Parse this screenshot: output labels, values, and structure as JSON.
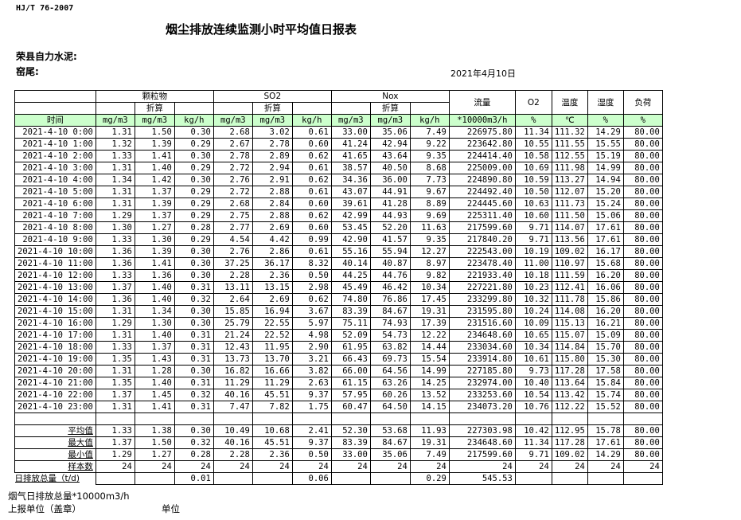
{
  "standard": "HJ/T  76-2007",
  "title": "烟尘排放连续监测小时平均值日报表",
  "company": "荣县自力水泥:",
  "kiln": "窑尾:",
  "date": "2021年4月10日",
  "headers": {
    "particulate": "颗粒物",
    "so2": "SO2",
    "nox": "Nox",
    "converted": "折算",
    "flow": "流量",
    "o2": "O2",
    "temperature": "温度",
    "humidity": "湿度",
    "load": "负荷",
    "time": "时间",
    "units": [
      "mg/m3",
      "mg/m3",
      "kg/h",
      "mg/m3",
      "mg/m3",
      "kg/h",
      "mg/m3",
      "mg/m3",
      "kg/h",
      "*10000m3/h",
      "%",
      "℃",
      "%",
      "%"
    ]
  },
  "rows": [
    [
      "2021-4-10 0:00",
      "1.31",
      "1.50",
      "0.30",
      "2.68",
      "3.02",
      "0.61",
      "33.00",
      "35.06",
      "7.49",
      "226975.80",
      "11.34",
      "111.32",
      "14.29",
      "80.00"
    ],
    [
      "2021-4-10 1:00",
      "1.32",
      "1.39",
      "0.29",
      "2.67",
      "2.78",
      "0.60",
      "41.24",
      "42.94",
      "9.22",
      "223642.80",
      "10.55",
      "111.55",
      "15.55",
      "80.00"
    ],
    [
      "2021-4-10 2:00",
      "1.33",
      "1.41",
      "0.30",
      "2.78",
      "2.89",
      "0.62",
      "41.65",
      "43.64",
      "9.35",
      "224414.40",
      "10.58",
      "112.55",
      "15.19",
      "80.00"
    ],
    [
      "2021-4-10 3:00",
      "1.31",
      "1.40",
      "0.29",
      "2.72",
      "2.94",
      "0.61",
      "38.57",
      "40.50",
      "8.68",
      "225009.00",
      "10.69",
      "111.98",
      "14.99",
      "80.00"
    ],
    [
      "2021-4-10 4:00",
      "1.34",
      "1.42",
      "0.30",
      "2.76",
      "2.91",
      "0.62",
      "34.36",
      "36.00",
      "7.73",
      "224890.80",
      "10.59",
      "113.27",
      "14.94",
      "80.00"
    ],
    [
      "2021-4-10 5:00",
      "1.31",
      "1.37",
      "0.29",
      "2.72",
      "2.88",
      "0.61",
      "43.07",
      "44.91",
      "9.67",
      "224492.40",
      "10.50",
      "112.07",
      "15.20",
      "80.00"
    ],
    [
      "2021-4-10 6:00",
      "1.31",
      "1.39",
      "0.29",
      "2.68",
      "2.84",
      "0.60",
      "39.61",
      "41.28",
      "8.89",
      "224445.60",
      "10.63",
      "111.73",
      "15.24",
      "80.00"
    ],
    [
      "2021-4-10 7:00",
      "1.29",
      "1.37",
      "0.29",
      "2.75",
      "2.88",
      "0.62",
      "42.99",
      "44.93",
      "9.69",
      "225311.40",
      "10.60",
      "111.50",
      "15.06",
      "80.00"
    ],
    [
      "2021-4-10 8:00",
      "1.30",
      "1.27",
      "0.28",
      "2.77",
      "2.69",
      "0.60",
      "53.45",
      "52.20",
      "11.63",
      "217599.60",
      "9.71",
      "114.07",
      "17.61",
      "80.00"
    ],
    [
      "2021-4-10 9:00",
      "1.33",
      "1.30",
      "0.29",
      "4.54",
      "4.42",
      "0.99",
      "42.90",
      "41.57",
      "9.35",
      "217840.20",
      "9.71",
      "113.56",
      "17.61",
      "80.00"
    ],
    [
      "2021-4-10 10:00",
      "1.36",
      "1.39",
      "0.30",
      "2.76",
      "2.86",
      "0.61",
      "55.16",
      "55.94",
      "12.27",
      "222543.00",
      "10.19",
      "109.02",
      "16.17",
      "80.00"
    ],
    [
      "2021-4-10 11:00",
      "1.36",
      "1.41",
      "0.30",
      "37.25",
      "36.17",
      "8.32",
      "40.14",
      "40.87",
      "8.97",
      "223478.40",
      "11.00",
      "110.97",
      "15.68",
      "80.00"
    ],
    [
      "2021-4-10 12:00",
      "1.33",
      "1.36",
      "0.30",
      "2.28",
      "2.36",
      "0.50",
      "44.25",
      "44.76",
      "9.82",
      "221933.40",
      "10.18",
      "111.59",
      "16.20",
      "80.00"
    ],
    [
      "2021-4-10 13:00",
      "1.37",
      "1.40",
      "0.31",
      "13.11",
      "13.15",
      "2.98",
      "45.49",
      "46.42",
      "10.34",
      "227221.80",
      "10.23",
      "112.41",
      "16.06",
      "80.00"
    ],
    [
      "2021-4-10 14:00",
      "1.36",
      "1.40",
      "0.32",
      "2.64",
      "2.69",
      "0.62",
      "74.80",
      "76.86",
      "17.45",
      "233299.80",
      "10.32",
      "111.78",
      "15.86",
      "80.00"
    ],
    [
      "2021-4-10 15:00",
      "1.31",
      "1.34",
      "0.30",
      "15.85",
      "16.94",
      "3.67",
      "83.39",
      "84.67",
      "19.31",
      "231595.80",
      "10.24",
      "114.08",
      "16.20",
      "80.00"
    ],
    [
      "2021-4-10 16:00",
      "1.29",
      "1.30",
      "0.30",
      "25.79",
      "22.55",
      "5.97",
      "75.11",
      "74.93",
      "17.39",
      "231516.60",
      "10.09",
      "115.13",
      "16.21",
      "80.00"
    ],
    [
      "2021-4-10 17:00",
      "1.31",
      "1.40",
      "0.31",
      "21.24",
      "22.52",
      "4.98",
      "52.09",
      "54.73",
      "12.22",
      "234648.60",
      "10.65",
      "115.07",
      "15.09",
      "80.00"
    ],
    [
      "2021-4-10 18:00",
      "1.33",
      "1.37",
      "0.31",
      "12.43",
      "11.95",
      "2.90",
      "61.95",
      "63.82",
      "14.44",
      "233034.60",
      "10.34",
      "114.84",
      "15.70",
      "80.00"
    ],
    [
      "2021-4-10 19:00",
      "1.35",
      "1.43",
      "0.31",
      "13.73",
      "13.70",
      "3.21",
      "66.43",
      "69.73",
      "15.54",
      "233914.80",
      "10.61",
      "115.80",
      "15.30",
      "80.00"
    ],
    [
      "2021-4-10 20:00",
      "1.31",
      "1.28",
      "0.30",
      "16.82",
      "16.66",
      "3.82",
      "66.00",
      "64.56",
      "14.99",
      "227185.80",
      "9.73",
      "117.28",
      "17.58",
      "80.00"
    ],
    [
      "2021-4-10 21:00",
      "1.35",
      "1.40",
      "0.31",
      "11.29",
      "11.29",
      "2.63",
      "61.15",
      "63.26",
      "14.25",
      "232974.00",
      "10.40",
      "113.64",
      "15.84",
      "80.00"
    ],
    [
      "2021-4-10 22:00",
      "1.37",
      "1.45",
      "0.32",
      "40.16",
      "45.51",
      "9.37",
      "57.95",
      "60.26",
      "13.52",
      "233253.60",
      "10.54",
      "113.42",
      "15.74",
      "80.00"
    ],
    [
      "2021-4-10 23:00",
      "1.31",
      "1.41",
      "0.31",
      "7.47",
      "7.82",
      "1.75",
      "60.47",
      "64.50",
      "14.15",
      "234073.20",
      "10.76",
      "112.22",
      "15.52",
      "80.00"
    ]
  ],
  "summary": [
    [
      "平均值",
      "1.33",
      "1.38",
      "0.30",
      "10.49",
      "10.68",
      "2.41",
      "52.30",
      "53.68",
      "11.93",
      "227303.98",
      "10.42",
      "112.95",
      "15.78",
      "80.00"
    ],
    [
      "最大值",
      "1.37",
      "1.50",
      "0.32",
      "40.16",
      "45.51",
      "9.37",
      "83.39",
      "84.67",
      "19.31",
      "234648.60",
      "11.34",
      "117.28",
      "17.61",
      "80.00"
    ],
    [
      "最小值",
      "1.29",
      "1.27",
      "0.28",
      "2.28",
      "2.36",
      "0.50",
      "33.00",
      "35.06",
      "7.49",
      "217599.60",
      "9.71",
      "109.02",
      "14.29",
      "80.00"
    ],
    [
      "样本数",
      "24",
      "24",
      "24",
      "24",
      "24",
      "24",
      "24",
      "24",
      "24",
      "24",
      "24",
      "24",
      "24",
      "24"
    ]
  ],
  "daily_total": [
    "日排放总量（t/d)",
    "",
    "",
    "0.01",
    "",
    "",
    "0.06",
    "",
    "",
    "0.29",
    "545.53",
    "",
    "",
    "",
    ""
  ],
  "footer": {
    "flue_gas_total": "烟气日排放总量*10000m3/h",
    "reporting_unit": "上报单位（盖章）",
    "unit": "单位"
  },
  "colors": {
    "unit_row_bg": "#ccffcc"
  }
}
